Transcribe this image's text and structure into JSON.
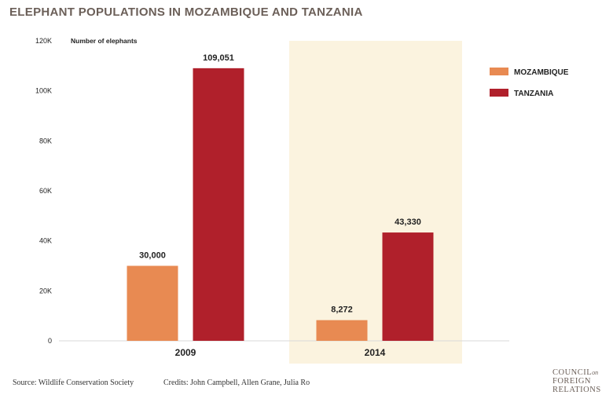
{
  "title": "ELEPHANT POPULATIONS IN MOZAMBIQUE AND TANZANIA",
  "source": "Source: Wildlife Conservation Society",
  "credits": "Credits: John Campbell, Allen Grane, Julia Ro",
  "logo": {
    "line1": "COUNCIL",
    "line1_suffix": "on",
    "line2": "FOREIGN",
    "line3": "RELATIONS"
  },
  "colors": {
    "mozambique": "#e88a52",
    "tanzania": "#b0202b",
    "highlight": "#fbf3df",
    "axis_text": "#222222"
  },
  "chart_data": {
    "type": "bar",
    "categories": [
      "2009",
      "2014"
    ],
    "series": [
      {
        "name": "MOZAMBIQUE",
        "values": [
          30000,
          8272
        ],
        "labels": [
          "30,000",
          "8,272"
        ]
      },
      {
        "name": "TANZANIA",
        "values": [
          109051,
          43330
        ],
        "labels": [
          "109,051",
          "43,330"
        ]
      }
    ],
    "ylabel": "Number of elephants",
    "ylim": [
      0,
      120000
    ],
    "yticks": [
      0,
      20000,
      40000,
      60000,
      80000,
      100000,
      120000
    ],
    "ytick_labels": [
      "0",
      "20K",
      "40K",
      "60K",
      "80K",
      "100K",
      "120K"
    ],
    "highlighted_category": "2014",
    "legend_position": "right",
    "grid": false
  }
}
